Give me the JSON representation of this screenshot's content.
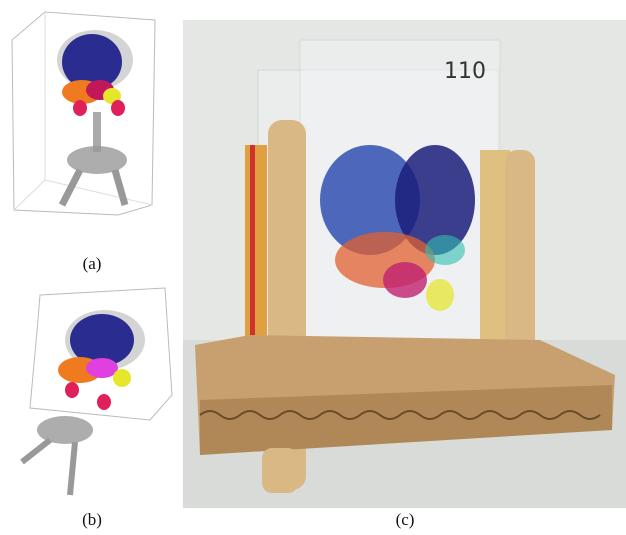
{
  "figure": {
    "panels": [
      {
        "caption": "(a)"
      },
      {
        "caption": "(b)"
      },
      {
        "caption": "(c)",
        "slide_label": "110"
      }
    ]
  }
}
